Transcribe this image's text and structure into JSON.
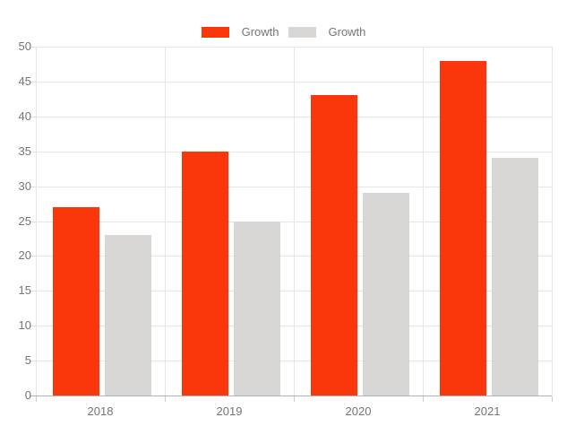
{
  "chart_data": {
    "type": "bar",
    "title": "",
    "xlabel": "",
    "ylabel": "",
    "categories": [
      "2018",
      "2019",
      "2020",
      "2021"
    ],
    "series": [
      {
        "name": "Growth",
        "color": "#fa370a",
        "values": [
          27,
          35,
          43,
          48
        ]
      },
      {
        "name": "Growth",
        "color": "#d8d7d5",
        "values": [
          23,
          25,
          29,
          34
        ]
      }
    ],
    "ylim": [
      0,
      50
    ],
    "yticks": [
      0,
      5,
      10,
      15,
      20,
      25,
      30,
      35,
      40,
      45,
      50
    ],
    "grid": true,
    "legend_position": "top-center"
  },
  "colors": {
    "background": "#ffffff",
    "gridline": "#e6e6e6",
    "axis_line": "#b3b3b3",
    "tick": "#cccccc",
    "label_text": "#757575"
  }
}
